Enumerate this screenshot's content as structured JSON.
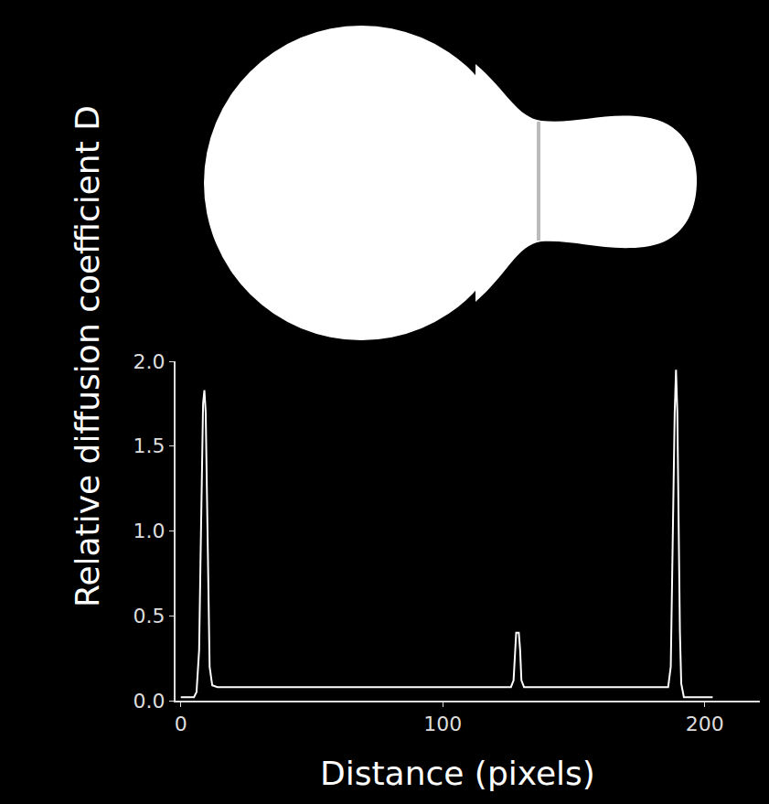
{
  "chart_data": {
    "type": "line",
    "xlabel": "Distance (pixels)",
    "ylabel": "Relative diffusion coefficient D",
    "x": [
      0,
      5,
      6,
      7,
      7.5,
      8,
      8.5,
      9,
      9.5,
      10,
      10.5,
      11,
      12,
      14,
      60,
      100,
      126,
      127,
      127.5,
      128,
      129,
      129.5,
      130,
      131,
      160,
      186,
      187,
      187.5,
      188,
      188.5,
      189,
      189.5,
      190,
      190.5,
      191,
      192,
      203
    ],
    "values": [
      0.02,
      0.02,
      0.05,
      0.3,
      0.8,
      1.4,
      1.75,
      1.83,
      1.7,
      1.2,
      0.6,
      0.2,
      0.09,
      0.08,
      0.08,
      0.08,
      0.08,
      0.12,
      0.3,
      0.4,
      0.4,
      0.3,
      0.12,
      0.08,
      0.08,
      0.08,
      0.2,
      0.6,
      1.2,
      1.7,
      1.95,
      1.7,
      1.0,
      0.4,
      0.1,
      0.02,
      0.02
    ],
    "color": "#ffffff",
    "xlim": [
      -2,
      221
    ],
    "xticks": [
      0,
      100,
      200
    ],
    "ylim": [
      0,
      2
    ],
    "yticks": [
      {
        "value": 0,
        "label": "0.0"
      },
      {
        "value": 0.5,
        "label": "0.5"
      },
      {
        "value": 1,
        "label": "1.0"
      },
      {
        "value": 1.5,
        "label": "1.5"
      },
      {
        "value": 2,
        "label": "2.0"
      }
    ],
    "grid": false
  }
}
